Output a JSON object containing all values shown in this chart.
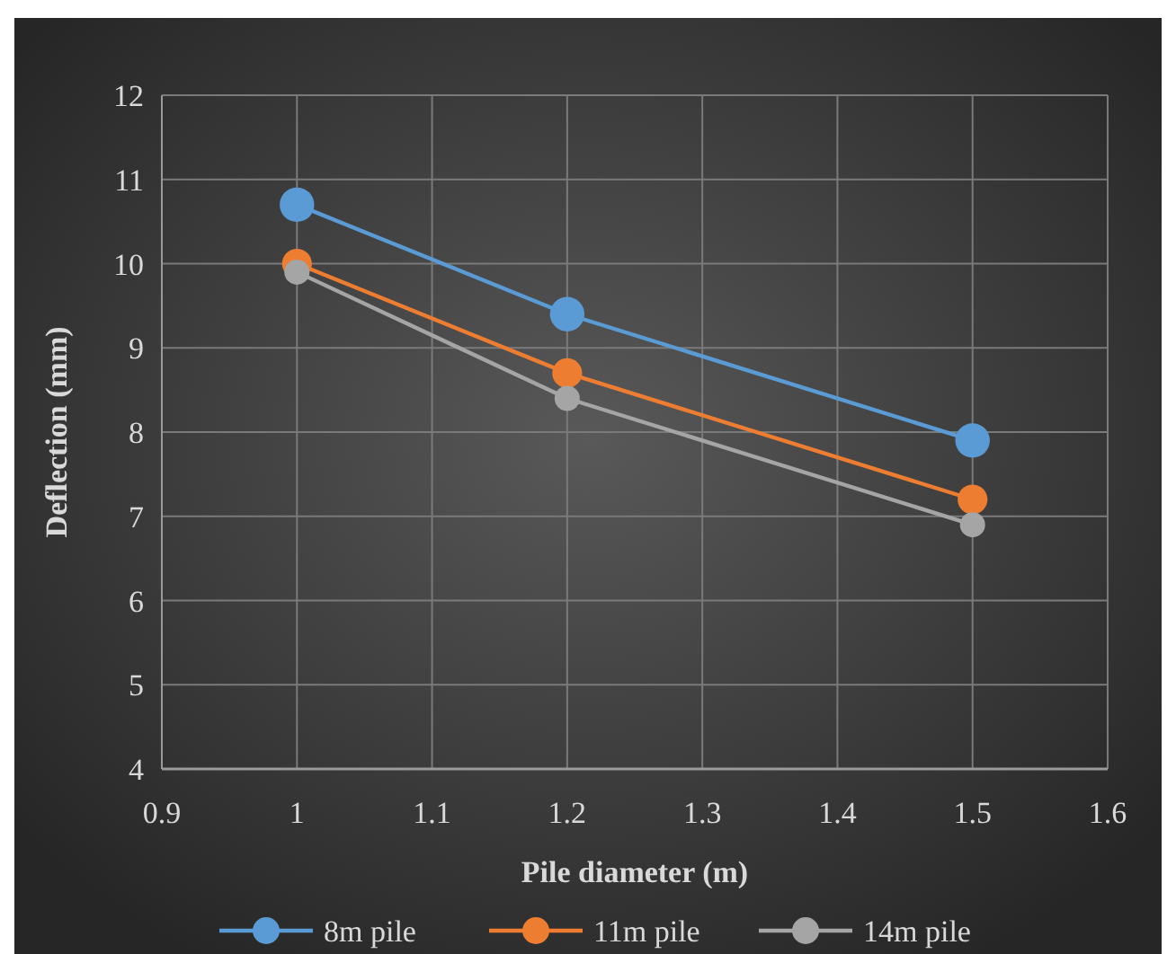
{
  "chart_data": {
    "type": "line",
    "xlabel": "Pile diameter (m)",
    "ylabel": "Deflection (mm)",
    "x": [
      1,
      1.2,
      1.5
    ],
    "series": [
      {
        "name": "8m pile",
        "color": "#5b9bd5",
        "values": [
          10.7,
          9.4,
          7.9
        ]
      },
      {
        "name": "11m pile",
        "color": "#ed7d31",
        "values": [
          10.0,
          8.7,
          7.2
        ]
      },
      {
        "name": "14m pile",
        "color": "#a5a5a5",
        "values": [
          9.9,
          8.4,
          6.9
        ]
      }
    ],
    "xlim": [
      0.9,
      1.6
    ],
    "xticks": [
      0.9,
      1,
      1.1,
      1.2,
      1.3,
      1.4,
      1.5,
      1.6
    ],
    "ylim": [
      4,
      12
    ],
    "yticks": [
      4,
      5,
      6,
      7,
      8,
      9,
      10,
      11,
      12
    ],
    "grid": true,
    "legend": "bottom",
    "marker": "circle",
    "line_style": "solid"
  }
}
